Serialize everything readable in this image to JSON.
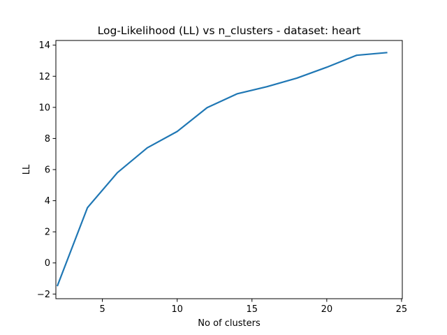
{
  "chart_data": {
    "type": "line",
    "title": "Log-Likelihood (LL) vs n_clusters - dataset: heart",
    "xlabel": "No of clusters",
    "ylabel": "LL",
    "xlim": [
      1.89,
      25.05
    ],
    "ylim": [
      -2.3,
      14.3
    ],
    "xticks": [
      5,
      10,
      15,
      20,
      25
    ],
    "yticks": [
      -2,
      0,
      2,
      4,
      6,
      8,
      10,
      12,
      14
    ],
    "grid": false,
    "series": [
      {
        "color": "#1f77b4",
        "x": [
          2,
          4,
          6,
          8,
          10,
          12,
          14,
          16,
          18,
          20,
          22,
          24
        ],
        "y": [
          -1.45,
          3.55,
          5.8,
          7.4,
          8.45,
          9.98,
          10.87,
          11.33,
          11.88,
          12.58,
          13.35,
          13.52
        ]
      }
    ]
  }
}
